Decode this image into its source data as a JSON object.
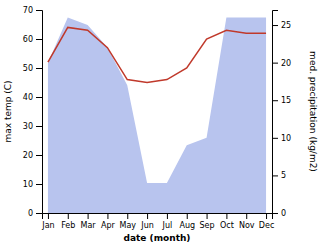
{
  "chart_data": {
    "type": "line",
    "categories": [
      "Jan",
      "Feb",
      "Mar",
      "Apr",
      "May",
      "Jun",
      "Jul",
      "Aug",
      "Sep",
      "Oct",
      "Nov",
      "Dec"
    ],
    "x_label": "date (month)",
    "y_label": "max temp (C)",
    "y2_label": "med. precipitation (kg/m2)",
    "series": [
      {
        "type": "area",
        "axis": "y2",
        "color": "#b8c4ee",
        "values": [
          20,
          26,
          25,
          22,
          17,
          4,
          4,
          9,
          10,
          26,
          26,
          26
        ]
      },
      {
        "type": "line",
        "color": "#c0392b",
        "values": [
          52,
          64,
          63,
          57,
          46,
          45,
          46,
          50,
          60,
          63,
          62,
          62
        ]
      }
    ],
    "ylim": [
      0,
      70
    ],
    "yticks": [
      0,
      10,
      20,
      30,
      40,
      50,
      60,
      70
    ],
    "y2lim": [
      0,
      27
    ],
    "y2ticks": [
      0,
      5,
      10,
      15,
      20,
      25
    ]
  }
}
